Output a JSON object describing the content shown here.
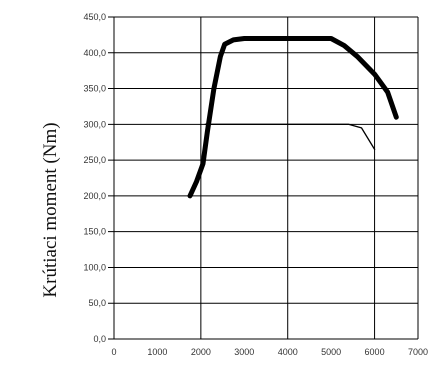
{
  "chart_data": {
    "type": "line",
    "title": "",
    "xlabel": "",
    "ylabel": "Krútiaci moment (Nm)",
    "xlim": [
      0,
      7000
    ],
    "ylim": [
      0,
      450
    ],
    "x_ticks": [
      0,
      1000,
      2000,
      3000,
      4000,
      5000,
      6000,
      7000
    ],
    "x_tick_labels": [
      "0",
      "1000",
      "2000",
      "3000",
      "4000",
      "5000",
      "6000",
      "7000"
    ],
    "y_ticks": [
      0,
      50,
      100,
      150,
      200,
      250,
      300,
      350,
      400,
      450
    ],
    "y_tick_labels": [
      "0,0",
      "50,0",
      "100,0",
      "150,0",
      "200,0",
      "250,0",
      "300,0",
      "350,0",
      "400,0",
      "450,0"
    ],
    "grid": true,
    "series": [
      {
        "style": "thick",
        "color": "#000000",
        "x": [
          1750,
          1900,
          2050,
          2150,
          2300,
          2450,
          2550,
          2750,
          3000,
          3500,
          4000,
          4500,
          5000,
          5300,
          5600,
          6000,
          6300,
          6500
        ],
        "y": [
          200,
          220,
          245,
          290,
          350,
          395,
          412,
          418,
          420,
          420,
          420,
          420,
          420,
          410,
          395,
          370,
          345,
          310
        ]
      },
      {
        "style": "thin",
        "color": "#000000",
        "x": [
          2100,
          2300,
          2600,
          3000,
          3500,
          4000,
          4500,
          5000,
          5400,
          5700,
          6000
        ],
        "y": [
          300,
          300,
          300,
          300,
          300,
          300,
          300,
          300,
          300,
          295,
          265
        ]
      }
    ]
  }
}
